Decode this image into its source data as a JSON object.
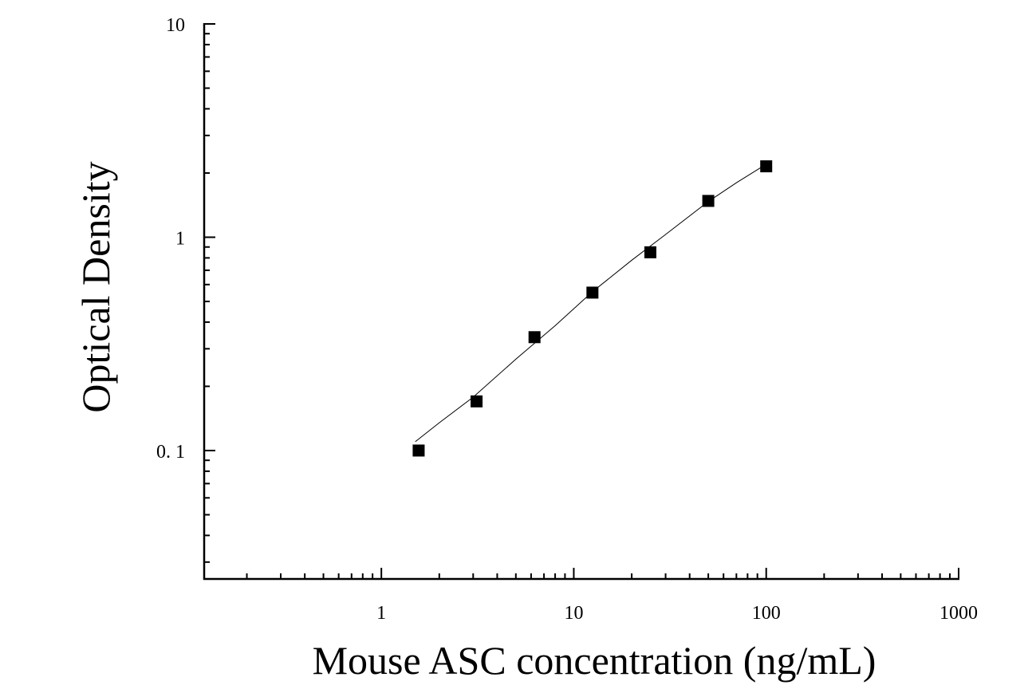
{
  "chart_data": {
    "type": "scatter",
    "title": "",
    "xlabel": "Mouse ASC concentration (ng/mL)",
    "ylabel": "Optical Density",
    "x_scale": "log",
    "y_scale": "log",
    "xlim": [
      0.12,
      1000
    ],
    "ylim": [
      0.025,
      10
    ],
    "x_tick_values": [
      1,
      10,
      100,
      1000
    ],
    "x_tick_labels": [
      "1",
      "10",
      "100",
      "1000"
    ],
    "y_tick_values": [
      0.1,
      1,
      10
    ],
    "y_tick_labels": [
      "0. 1",
      "1",
      "10"
    ],
    "grid": false,
    "legend": "none",
    "marker_color": "#000000",
    "points": [
      {
        "x": 1.5625,
        "y": 0.1
      },
      {
        "x": 3.125,
        "y": 0.17
      },
      {
        "x": 6.25,
        "y": 0.34
      },
      {
        "x": 12.5,
        "y": 0.55
      },
      {
        "x": 25,
        "y": 0.85
      },
      {
        "x": 50,
        "y": 1.48
      },
      {
        "x": 100,
        "y": 2.15
      }
    ],
    "fit_curve": [
      {
        "x": 1.5,
        "y": 0.11
      },
      {
        "x": 2,
        "y": 0.135
      },
      {
        "x": 3,
        "y": 0.178
      },
      {
        "x": 5,
        "y": 0.268
      },
      {
        "x": 8,
        "y": 0.385
      },
      {
        "x": 12.5,
        "y": 0.555
      },
      {
        "x": 20,
        "y": 0.78
      },
      {
        "x": 30,
        "y": 1.03
      },
      {
        "x": 50,
        "y": 1.47
      },
      {
        "x": 70,
        "y": 1.8
      },
      {
        "x": 100,
        "y": 2.2
      }
    ]
  }
}
